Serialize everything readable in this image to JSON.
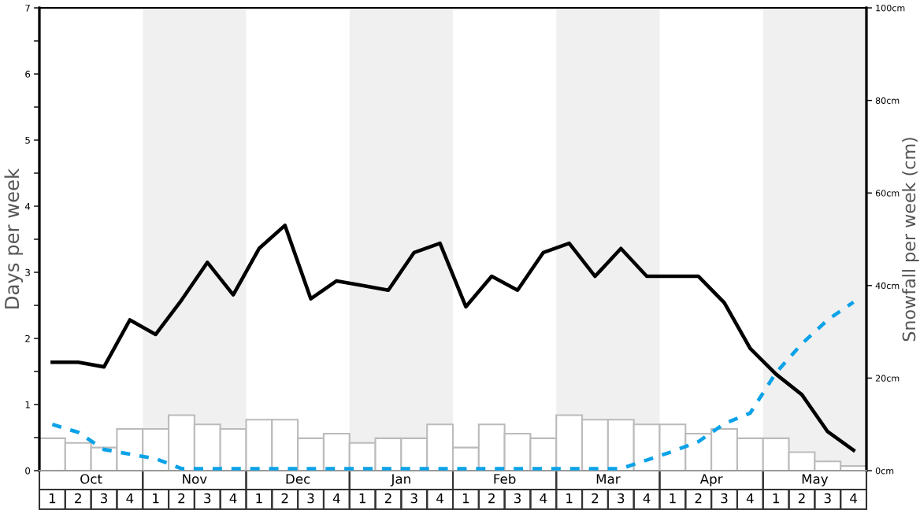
{
  "chart_data": {
    "type": "line",
    "ylabel": "Days per week",
    "y2label": "Snowfall per week (cm)",
    "categories": [
      "1",
      "2",
      "3",
      "4",
      "1",
      "2",
      "3",
      "4",
      "1",
      "2",
      "3",
      "4",
      "1",
      "2",
      "3",
      "4",
      "1",
      "2",
      "3",
      "4",
      "1",
      "2",
      "3",
      "4",
      "1",
      "2",
      "3",
      "4",
      "1",
      "2",
      "3",
      "4"
    ],
    "annotations": [
      "Oct",
      "Nov",
      "Dec",
      "Jan",
      "Feb",
      "Mar",
      "Apr",
      "May"
    ],
    "ylim": [
      0,
      7
    ],
    "yticks": [
      0,
      {
        "value": 0.5,
        "label": null
      },
      1,
      {
        "value": 1.5,
        "label": null
      },
      2,
      {
        "value": 2.5,
        "label": null
      },
      3,
      {
        "value": 3.5,
        "label": null
      },
      4,
      {
        "value": 4.5,
        "label": null
      },
      5,
      {
        "value": 5.5,
        "label": null
      },
      6,
      {
        "value": 6.5,
        "label": null
      },
      7
    ],
    "y2lim": [
      0,
      100
    ],
    "y2ticks": [
      {
        "value": 0,
        "label": "0cm"
      },
      {
        "value": 20,
        "label": "20cm"
      },
      {
        "value": 40,
        "label": "40cm"
      },
      {
        "value": 60,
        "label": "60cm"
      },
      {
        "value": 80,
        "label": "80cm"
      },
      {
        "value": 100,
        "label": "100cm"
      }
    ],
    "series": [
      {
        "type": "bar",
        "axis": "y2",
        "color": "#ffffff",
        "values": [
          7,
          6,
          5,
          9,
          9,
          12,
          10,
          9,
          11,
          11,
          7,
          8,
          6,
          7,
          7,
          10,
          5,
          10,
          8,
          7,
          12,
          11,
          11,
          10,
          10,
          8,
          9,
          7,
          7,
          4,
          2,
          1
        ]
      },
      {
        "color": "#000000",
        "line_style": "solid",
        "values": [
          1.64,
          1.64,
          1.57,
          2.28,
          2.06,
          2.58,
          3.15,
          2.66,
          3.36,
          3.71,
          2.6,
          2.87,
          2.8,
          2.73,
          3.3,
          3.44,
          2.48,
          2.94,
          2.73,
          3.3,
          3.44,
          2.94,
          3.36,
          2.94,
          2.94,
          2.94,
          2.54,
          1.85,
          1.46,
          1.15,
          0.59,
          0.31
        ]
      },
      {
        "color": "#0ba2e8",
        "line_style": "dashed",
        "values": [
          0.7,
          0.58,
          0.32,
          0.25,
          0.18,
          0.03,
          0.03,
          0.03,
          0.03,
          0.03,
          0.03,
          0.03,
          0.03,
          0.03,
          0.03,
          0.03,
          0.03,
          0.03,
          0.03,
          0.03,
          0.03,
          0.03,
          0.03,
          0.16,
          0.29,
          0.44,
          0.71,
          0.87,
          1.48,
          1.92,
          2.28,
          2.55
        ]
      }
    ]
  }
}
